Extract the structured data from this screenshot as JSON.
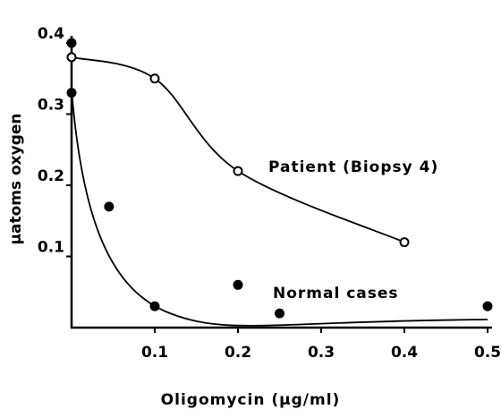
{
  "chart_data": {
    "type": "scatter",
    "xlabel": "Oligomycin (µg/ml)",
    "ylabel": "µatoms oxygen",
    "xlim": [
      0,
      0.5
    ],
    "xticks": [
      0.1,
      0.2,
      0.3,
      0.4,
      0.5
    ],
    "ylim": [
      0,
      0.4
    ],
    "yticks": [
      0.1,
      0.2,
      0.3,
      0.4
    ],
    "series": [
      {
        "name": "Patient (Biopsy 4)",
        "color": "#000000",
        "marker": "open",
        "x": [
          0,
          0.1,
          0.2,
          0.4
        ],
        "values": [
          0.38,
          0.35,
          0.22,
          0.12
        ]
      },
      {
        "name": "Normal cases",
        "color": "#000000",
        "marker": "filled",
        "x": [
          0,
          0,
          0.045,
          0.1,
          0.2,
          0.25,
          0.5
        ],
        "values": [
          0.4,
          0.33,
          0.17,
          0.03,
          0.06,
          0.02,
          0.03
        ]
      }
    ]
  }
}
